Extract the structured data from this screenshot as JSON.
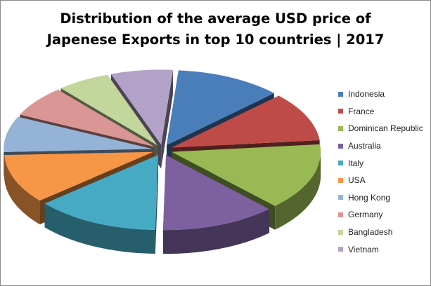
{
  "chart_data": {
    "type": "pie",
    "style": "3d-exploded",
    "title_lines": [
      "Distribution of the average USD price of",
      "Japenese Exports in top 10 countries | 2017"
    ],
    "categories": [
      "Indonesia",
      "France",
      "Dominican Republic",
      "Australia",
      "Italy",
      "USA",
      "Hong Kong",
      "Germany",
      "Bangladesh",
      "Vietnam"
    ],
    "values": [
      12,
      11,
      15,
      13,
      14,
      11,
      8,
      7,
      6,
      7
    ],
    "colors": [
      "#4a7ebb",
      "#be4b48",
      "#98b954",
      "#7d60a0",
      "#46aac4",
      "#f79646",
      "#94b3d6",
      "#d99694",
      "#c3d69b",
      "#b3a2c7"
    ],
    "legend_position": "right"
  }
}
